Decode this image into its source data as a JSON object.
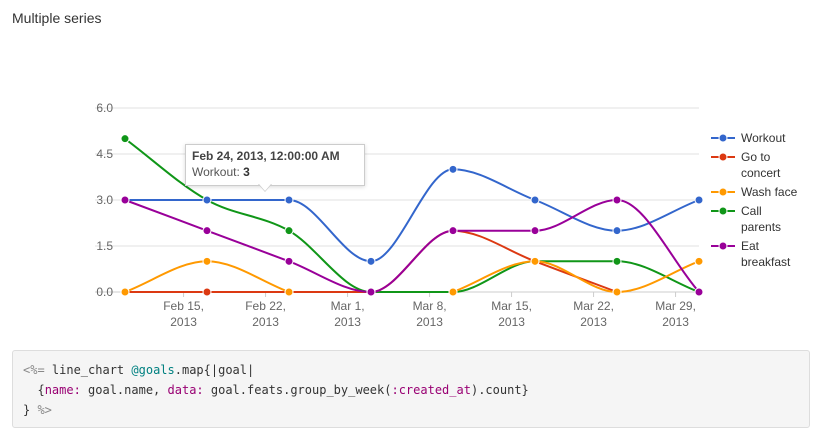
{
  "page": {
    "section_title": "Multiple series"
  },
  "chart_data": {
    "type": "line",
    "title": "",
    "xlabel": "",
    "ylabel": "",
    "x": [
      "2013-02-10",
      "2013-02-17",
      "2013-02-24",
      "2013-03-03",
      "2013-03-10",
      "2013-03-17",
      "2013-03-24",
      "2013-03-31"
    ],
    "x_ticks": [
      {
        "date": "2013-02-15",
        "line1": "Feb 15,",
        "line2": "2013"
      },
      {
        "date": "2013-02-22",
        "line1": "Feb 22,",
        "line2": "2013"
      },
      {
        "date": "2013-03-01",
        "line1": "Mar 1,",
        "line2": "2013"
      },
      {
        "date": "2013-03-08",
        "line1": "Mar 8,",
        "line2": "2013"
      },
      {
        "date": "2013-03-15",
        "line1": "Mar 15,",
        "line2": "2013"
      },
      {
        "date": "2013-03-22",
        "line1": "Mar 22,",
        "line2": "2013"
      },
      {
        "date": "2013-03-29",
        "line1": "Mar 29,",
        "line2": "2013"
      }
    ],
    "y_ticks": [
      "0.0",
      "1.5",
      "3.0",
      "4.5",
      "6.0"
    ],
    "ylim": [
      0,
      6
    ],
    "xlim": [
      "2013-02-10",
      "2013-03-31"
    ],
    "grid": true,
    "legend_position": "right",
    "series": [
      {
        "name": "Workout",
        "legend_lines": [
          "Workout"
        ],
        "color": "#3366cc",
        "points": [
          {
            "x": "2013-02-10",
            "y": 3
          },
          {
            "x": "2013-02-17",
            "y": 3
          },
          {
            "x": "2013-02-24",
            "y": 3
          },
          {
            "x": "2013-03-03",
            "y": 1
          },
          {
            "x": "2013-03-10",
            "y": 4
          },
          {
            "x": "2013-03-17",
            "y": 3
          },
          {
            "x": "2013-03-24",
            "y": 2
          },
          {
            "x": "2013-03-31",
            "y": 3
          }
        ]
      },
      {
        "name": "Go to concert",
        "legend_lines": [
          "Go to",
          "concert"
        ],
        "color": "#dc3912",
        "points": [
          {
            "x": "2013-02-10",
            "y": 0
          },
          {
            "x": "2013-02-17",
            "y": 0
          },
          {
            "x": "2013-02-24",
            "y": 0
          },
          {
            "x": "2013-03-03",
            "y": 0
          },
          {
            "x": "2013-03-10",
            "y": 2
          },
          {
            "x": "2013-03-17",
            "y": 1
          },
          {
            "x": "2013-03-24",
            "y": 0
          }
        ]
      },
      {
        "name": "Wash face",
        "legend_lines": [
          "Wash face"
        ],
        "color": "#ff9900",
        "points": [
          {
            "x": "2013-02-10",
            "y": 0
          },
          {
            "x": "2013-02-17",
            "y": 1
          },
          {
            "x": "2013-02-24",
            "y": 0
          },
          {
            "x": "2013-03-10",
            "y": 0
          },
          {
            "x": "2013-03-17",
            "y": 1
          },
          {
            "x": "2013-03-24",
            "y": 0
          },
          {
            "x": "2013-03-31",
            "y": 1
          }
        ]
      },
      {
        "name": "Call parents",
        "legend_lines": [
          "Call",
          "parents"
        ],
        "color": "#109618",
        "points": [
          {
            "x": "2013-02-10",
            "y": 5
          },
          {
            "x": "2013-02-17",
            "y": 3
          },
          {
            "x": "2013-02-24",
            "y": 2
          },
          {
            "x": "2013-03-03",
            "y": 0
          },
          {
            "x": "2013-03-10",
            "y": 0
          },
          {
            "x": "2013-03-17",
            "y": 1
          },
          {
            "x": "2013-03-24",
            "y": 1
          },
          {
            "x": "2013-03-31",
            "y": 0
          }
        ]
      },
      {
        "name": "Eat breakfast",
        "legend_lines": [
          "Eat",
          "breakfast"
        ],
        "color": "#990099",
        "points": [
          {
            "x": "2013-02-10",
            "y": 3
          },
          {
            "x": "2013-02-17",
            "y": 2
          },
          {
            "x": "2013-02-24",
            "y": 1
          },
          {
            "x": "2013-03-03",
            "y": 0
          },
          {
            "x": "2013-03-10",
            "y": 2
          },
          {
            "x": "2013-03-17",
            "y": 2
          },
          {
            "x": "2013-03-24",
            "y": 3
          },
          {
            "x": "2013-03-31",
            "y": 0
          }
        ]
      }
    ],
    "tooltip": {
      "title": "Feb 24, 2013, 12:00:00 AM",
      "series_label": "Workout:",
      "value": "3"
    }
  },
  "code": {
    "line1": {
      "erb_open": "<%=",
      "text1": " line_chart ",
      "ivar": "@goals",
      "text2": ".map{|goal|"
    },
    "line2": {
      "indent": "  {",
      "key_name": "name:",
      "text1": " goal.name, ",
      "key_data": "data:",
      "text2": " goal.feats.group_by_week(",
      "symbol": ":created_at",
      "text3": ").count}"
    },
    "line3": {
      "text": "} ",
      "erb_close": "%>"
    }
  }
}
